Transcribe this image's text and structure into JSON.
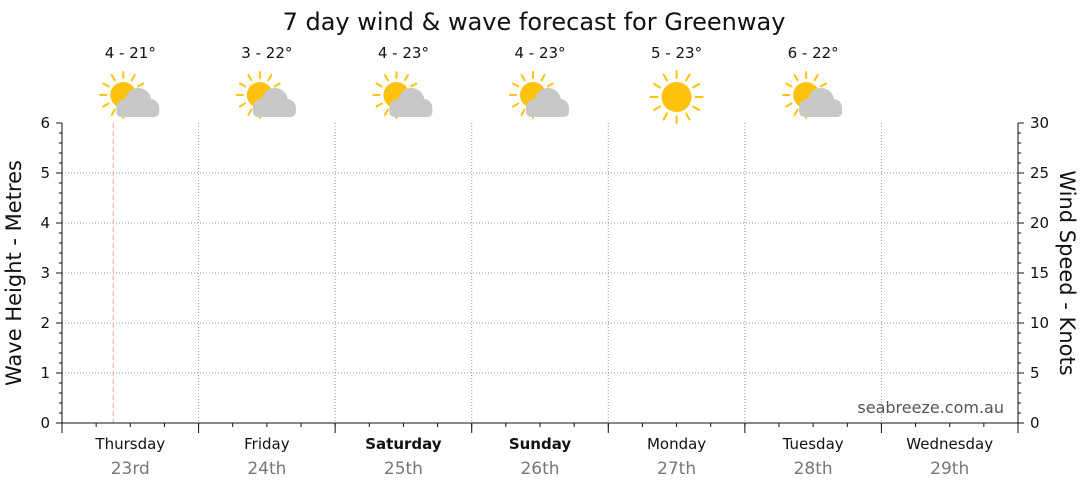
{
  "chart_data": {
    "type": "line",
    "title": "7 day wind & wave forecast for Greenway",
    "y_left_label": "Wave Height - Metres",
    "y_right_label": "Wind Speed - Knots",
    "y_left_range": [
      0,
      6
    ],
    "y_right_range": [
      0,
      30
    ],
    "y_left_ticks": [
      "0",
      "1",
      "2",
      "3",
      "4",
      "5",
      "6"
    ],
    "y_right_ticks": [
      "0",
      "5",
      "10",
      "15",
      "20",
      "25",
      "30"
    ],
    "grid": true,
    "current_time_marker_day_fraction": 0.375,
    "days": [
      {
        "day": "Thursday",
        "date": "23rd",
        "bold": false,
        "temp": "4 - 21°",
        "weather_icon": "partly-cloudy-icon"
      },
      {
        "day": "Friday",
        "date": "24th",
        "bold": false,
        "temp": "3 - 22°",
        "weather_icon": "partly-cloudy-icon"
      },
      {
        "day": "Saturday",
        "date": "25th",
        "bold": true,
        "temp": "4 - 23°",
        "weather_icon": "partly-cloudy-icon"
      },
      {
        "day": "Sunday",
        "date": "26th",
        "bold": true,
        "temp": "4 - 23°",
        "weather_icon": "partly-cloudy-icon"
      },
      {
        "day": "Monday",
        "date": "27th",
        "bold": false,
        "temp": "5 - 23°",
        "weather_icon": "sunny-icon"
      },
      {
        "day": "Tuesday",
        "date": "28th",
        "bold": false,
        "temp": "6 - 22°",
        "weather_icon": "partly-cloudy-icon"
      },
      {
        "day": "Wednesday",
        "date": "29th",
        "bold": false,
        "temp": "",
        "weather_icon": ""
      }
    ],
    "series": []
  },
  "credit": "seabreeze.com.au",
  "colors": {
    "sun": "#FFC20E",
    "cloud": "#C8C8C8",
    "marker": "#F2A0A0",
    "grid": "#999999"
  }
}
